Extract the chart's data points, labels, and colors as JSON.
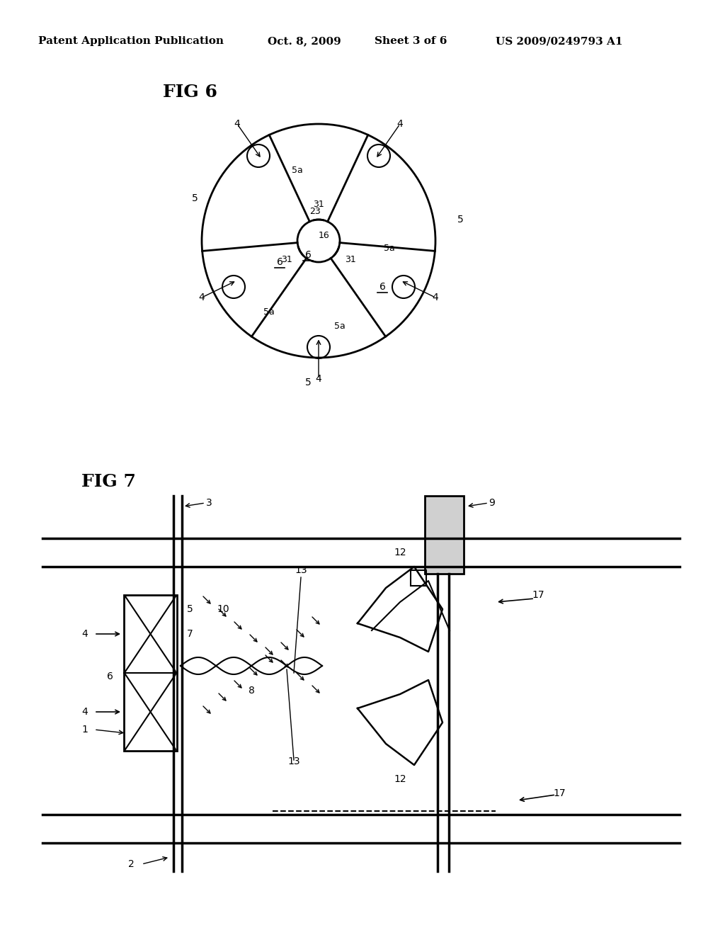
{
  "background_color": "#ffffff",
  "header_text": "Patent Application Publication",
  "header_date": "Oct. 8, 2009",
  "header_sheet": "Sheet 3 of 6",
  "header_patent": "US 2009/0249793 A1",
  "fig6_label": "FIG 6",
  "fig7_label": "FIG 7",
  "line_color": "#000000",
  "text_color": "#000000"
}
